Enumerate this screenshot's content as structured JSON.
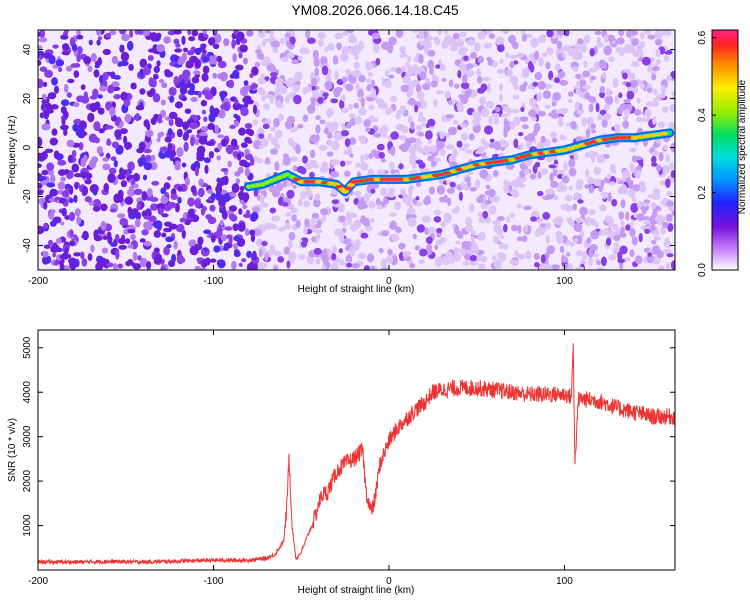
{
  "title": "YM08.2026.066.14.18.C45",
  "chart_data": [
    {
      "type": "heatmap",
      "xlabel": "Height of straight line (km)",
      "ylabel": "Frequency (Hz)",
      "xlim": [
        -200,
        163
      ],
      "ylim": [
        -50,
        48
      ],
      "xticks": [
        -200,
        -100,
        0,
        100
      ],
      "xtick_labels": [
        "-200",
        "-100",
        "0",
        "100"
      ],
      "yticks": [
        -40,
        -20,
        0,
        20,
        40
      ],
      "ytick_labels": [
        "-40",
        "-20",
        "0",
        "20",
        "40"
      ],
      "colorbar": {
        "label": "Normalized spectral amplitude",
        "range": [
          0,
          0.62
        ],
        "ticks": [
          0,
          0.2,
          0.4,
          0.6
        ],
        "tick_labels": [
          "0.0",
          "0.2",
          "0.4",
          "0.6"
        ]
      },
      "ridge": {
        "x": [
          -80,
          -72,
          -65,
          -58,
          -50,
          -40,
          -30,
          -25,
          -20,
          -10,
          0,
          10,
          20,
          30,
          40,
          50,
          60,
          70,
          80,
          90,
          100,
          110,
          120,
          130,
          140,
          150,
          160
        ],
        "y": [
          -16,
          -15,
          -13,
          -11,
          -14,
          -14,
          -15,
          -18,
          -14,
          -13,
          -13,
          -13,
          -12,
          -11,
          -9,
          -7,
          -6,
          -5,
          -3,
          -2,
          -1,
          1,
          3,
          4,
          4,
          5,
          6
        ]
      }
    },
    {
      "type": "line",
      "xlabel": "Height of straight line (km)",
      "ylabel": "SNR (10 * v/v)",
      "xlim": [
        -200,
        163
      ],
      "ylim": [
        0,
        5400
      ],
      "xticks": [
        -200,
        -100,
        0,
        100
      ],
      "xtick_labels": [
        "-200",
        "-100",
        "0",
        "100"
      ],
      "yticks": [
        1000,
        2000,
        3000,
        4000,
        5000
      ],
      "ytick_labels": [
        "1000",
        "2000",
        "3000",
        "4000",
        "5000"
      ],
      "color": "#ee3333",
      "series": [
        {
          "name": "SNR",
          "x": [
            -200,
            -180,
            -160,
            -140,
            -120,
            -100,
            -80,
            -70,
            -65,
            -60,
            -58,
            -57,
            -55,
            -53,
            -50,
            -45,
            -42,
            -40,
            -38,
            -35,
            -30,
            -25,
            -20,
            -15,
            -13,
            -10,
            -8,
            -5,
            0,
            5,
            10,
            15,
            20,
            25,
            30,
            40,
            50,
            60,
            70,
            80,
            90,
            100,
            104,
            105,
            106,
            108,
            110,
            120,
            130,
            140,
            150,
            163
          ],
          "y": [
            180,
            180,
            190,
            180,
            200,
            220,
            220,
            260,
            350,
            650,
            1500,
            2600,
            900,
            250,
            400,
            900,
            1200,
            1500,
            1700,
            1750,
            2200,
            2400,
            2500,
            2700,
            1750,
            1300,
            1600,
            2400,
            2900,
            3200,
            3400,
            3600,
            3750,
            4000,
            4050,
            4100,
            4100,
            4050,
            4000,
            3950,
            3950,
            3950,
            3900,
            5100,
            2400,
            3850,
            3850,
            3800,
            3650,
            3550,
            3450,
            3450
          ]
        }
      ]
    }
  ]
}
